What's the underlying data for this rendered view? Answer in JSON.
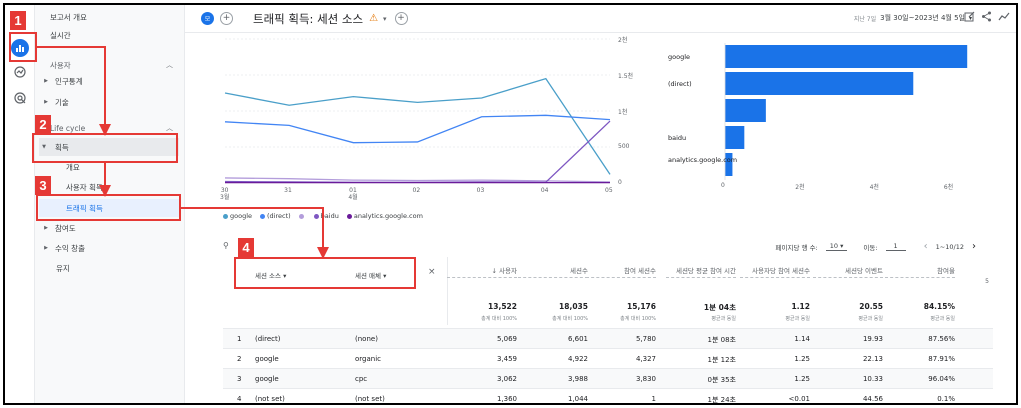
{
  "sidebar": {
    "report_overview": "보고서 개요",
    "realtime": "실시간",
    "user_section": "사용자",
    "demographics": "인구통계",
    "tech": "기술",
    "lifecycle_section": "Life cycle",
    "acquisition": "획득",
    "overview": "개요",
    "user_acquisition": "사용자 획득",
    "traffic_acquisition": "트래픽 획득",
    "engagement": "참여도",
    "monetization": "수익 창출",
    "retention": "유지"
  },
  "header": {
    "badge": "모",
    "title": "트래픽 획득: 세션 소스",
    "date_label": "지난 7일",
    "date_range": "3월 30일~2023년 4월 5일"
  },
  "line_chart": {
    "x_labels": [
      "30\n3월",
      "31",
      "01\n4월",
      "02",
      "03",
      "04",
      "05"
    ],
    "y_labels": [
      "2천",
      "1.5천",
      "1천",
      "500",
      "0"
    ]
  },
  "bar_chart": {
    "categories": [
      "google",
      "(direct)",
      "",
      "baidu",
      "analytics.google.com"
    ],
    "x_labels": [
      "0",
      "2천",
      "4천",
      "6천"
    ]
  },
  "legend": [
    "google",
    "(direct)",
    "",
    "baidu",
    "analytics.google.com"
  ],
  "chart_data": [
    {
      "type": "line",
      "x": [
        "3월 30일",
        "3월 31일",
        "4월 1일",
        "4월 2일",
        "4월 3일",
        "4월 4일",
        "4월 5일"
      ],
      "ylim": [
        0,
        2000
      ],
      "series": [
        {
          "name": "google",
          "values": [
            1250,
            1080,
            1200,
            1120,
            1180,
            1450,
            120
          ]
        },
        {
          "name": "(direct)",
          "values": [
            850,
            800,
            560,
            570,
            920,
            940,
            880
          ]
        },
        {
          "name": "",
          "values": [
            70,
            60,
            40,
            35,
            40,
            30,
            15
          ]
        },
        {
          "name": "baidu",
          "values": [
            20,
            15,
            10,
            10,
            15,
            10,
            860
          ]
        },
        {
          "name": "analytics.google.com",
          "values": [
            5,
            5,
            5,
            5,
            5,
            5,
            5
          ]
        }
      ]
    },
    {
      "type": "bar",
      "categories": [
        "google",
        "(direct)",
        "",
        "baidu",
        "analytics.google.com"
      ],
      "values": [
        6521,
        5069,
        1100,
        520,
        200
      ],
      "xlim": [
        0,
        7000
      ]
    }
  ],
  "table": {
    "rows_per_page_label": "페이지당 행 수:",
    "rows_per_page": "10",
    "goto_label": "이동:",
    "goto_value": "1",
    "pagination": "1~10/12",
    "dim1": "세션 소스",
    "dim2": "세션 매체",
    "columns": [
      "사용자",
      "세션수",
      "참여 세션수",
      "세션당 평균 참여 시간",
      "사용자당 참여 세션수",
      "세션당 이벤트",
      "참여율"
    ],
    "totals": [
      "13,522",
      "18,035",
      "15,176",
      "1분 04초",
      "1.12",
      "20.55",
      "84.15%"
    ],
    "total_subs": [
      "총계 대비 100%",
      "총계 대비 100%",
      "총계 대비 100%",
      "평균과 동일",
      "평균과 동일",
      "평균과 동일",
      "평균과 동일"
    ],
    "rows": [
      {
        "idx": "1",
        "source": "(direct)",
        "medium": "(none)",
        "vals": [
          "5,069",
          "6,601",
          "5,780",
          "1분 08초",
          "1.14",
          "19.93",
          "87.56%"
        ]
      },
      {
        "idx": "2",
        "source": "google",
        "medium": "organic",
        "vals": [
          "3,459",
          "4,922",
          "4,327",
          "1분 12초",
          "1.25",
          "22.13",
          "87.91%"
        ]
      },
      {
        "idx": "3",
        "source": "google",
        "medium": "cpc",
        "vals": [
          "3,062",
          "3,988",
          "3,830",
          "0분 35초",
          "1.25",
          "10.33",
          "96.04%"
        ]
      },
      {
        "idx": "4",
        "source": "(not set)",
        "medium": "(not set)",
        "vals": [
          "1,360",
          "1,044",
          "1",
          "1분 24초",
          "<0.01",
          "44.56",
          "0.1%"
        ]
      }
    ]
  },
  "annotations": [
    "1",
    "2",
    "3",
    "4"
  ],
  "colors": {
    "accent": "#1a73e8",
    "annotation": "#e53935",
    "google": "#4a9fc9",
    "direct": "#4285f4",
    "blank": "#b39ddb",
    "baidu": "#7e57c2",
    "analytics": "#6a1b9a"
  }
}
